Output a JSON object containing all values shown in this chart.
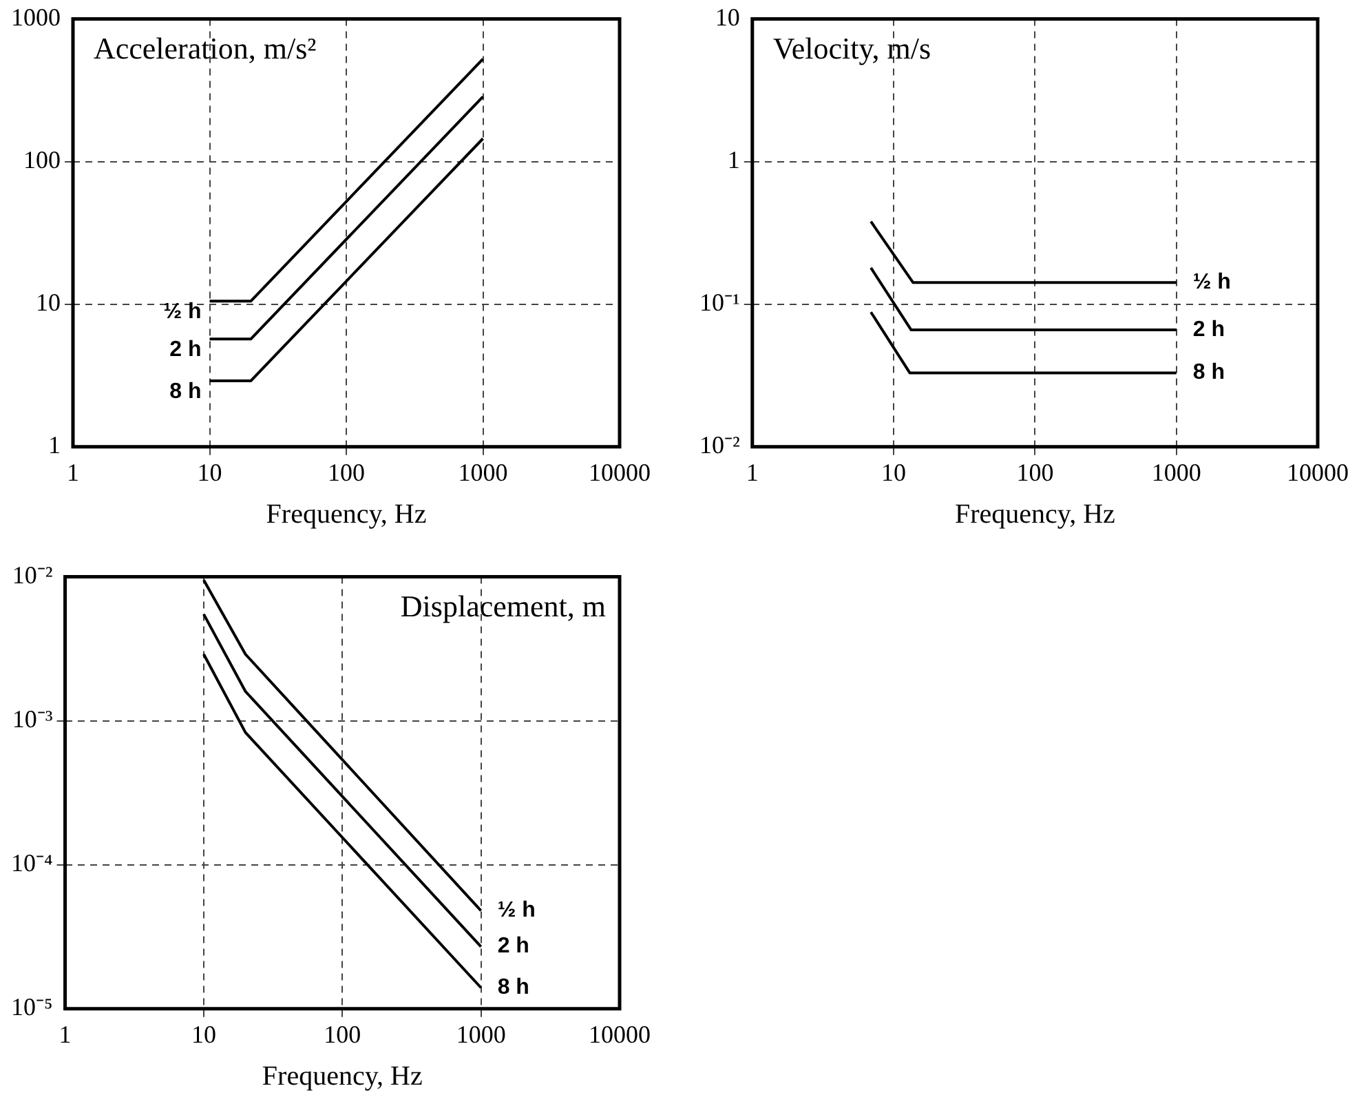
{
  "chart_data": [
    {
      "type": "line",
      "title": "Acceleration, m/s²",
      "xlabel": "Frequency, Hz",
      "log": "xy",
      "grid": true,
      "legend": false,
      "marker": "none",
      "line_style": "solid",
      "xlim": [
        1,
        10000
      ],
      "xticks": [
        1,
        10,
        100,
        1000,
        10000
      ],
      "ylim": [
        1,
        1000
      ],
      "yticks": [
        1,
        10,
        100,
        1000
      ],
      "series": [
        {
          "name": "½ h",
          "color": "#000000",
          "x": [
            10,
            20,
            1000
          ],
          "values": [
            10.5,
            10.5,
            525
          ]
        },
        {
          "name": "2 h",
          "color": "#000000",
          "x": [
            10,
            20,
            1000
          ],
          "values": [
            5.7,
            5.7,
            285
          ]
        },
        {
          "name": "8 h",
          "color": "#000000",
          "x": [
            10,
            20,
            1000
          ],
          "values": [
            2.9,
            2.9,
            145
          ]
        }
      ]
    },
    {
      "type": "line",
      "title": "Velocity, m/s",
      "xlabel": "Frequency, Hz",
      "log": "xy",
      "grid": true,
      "legend": false,
      "marker": "none",
      "line_style": "solid",
      "xlim": [
        1,
        10000
      ],
      "xticks": [
        1,
        10,
        100,
        1000,
        10000
      ],
      "ylim": [
        0.01,
        10
      ],
      "yticks": [
        {
          "value": 0.01,
          "label": "10⁻²"
        },
        {
          "value": 0.1,
          "label": "10⁻¹"
        },
        1,
        10
      ],
      "series": [
        {
          "name": "½ h",
          "color": "#000000",
          "x": [
            6.9,
            13.7,
            1000
          ],
          "values": [
            0.38,
            0.142,
            0.142
          ]
        },
        {
          "name": "2 h",
          "color": "#000000",
          "x": [
            6.9,
            13.3,
            1000
          ],
          "values": [
            0.18,
            0.066,
            0.066
          ]
        },
        {
          "name": "8 h",
          "color": "#000000",
          "x": [
            6.9,
            13,
            1000
          ],
          "values": [
            0.088,
            0.033,
            0.033
          ]
        }
      ]
    },
    {
      "type": "line",
      "title": "Displacement, m",
      "xlabel": "Frequency, Hz",
      "log": "xy",
      "grid": true,
      "legend": false,
      "marker": "none",
      "line_style": "solid",
      "xlim": [
        1,
        10000
      ],
      "xticks": [
        1,
        10,
        100,
        1000,
        10000
      ],
      "ylim": [
        1e-05,
        0.01
      ],
      "yticks": [
        {
          "value": 1e-05,
          "label": "10⁻⁵"
        },
        {
          "value": 0.0001,
          "label": "10⁻⁴"
        },
        {
          "value": 0.001,
          "label": "10⁻³"
        },
        {
          "value": 0.01,
          "label": "10⁻²"
        }
      ],
      "series": [
        {
          "name": "½ h",
          "color": "#000000",
          "x": [
            10,
            20,
            1000
          ],
          "values": [
            0.0095,
            0.0029,
            4.8e-05
          ]
        },
        {
          "name": "2 h",
          "color": "#000000",
          "x": [
            10,
            20,
            1000
          ],
          "values": [
            0.0055,
            0.0016,
            2.7e-05
          ]
        },
        {
          "name": "8 h",
          "color": "#000000",
          "x": [
            10,
            20,
            1000
          ],
          "values": [
            0.0029,
            0.00083,
            1.4e-05
          ]
        }
      ]
    }
  ]
}
